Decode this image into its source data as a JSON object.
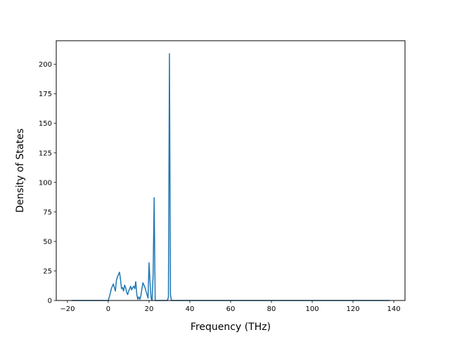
{
  "chart_data": {
    "type": "line",
    "title": "",
    "xlabel": "Frequency (THz)",
    "ylabel": "Density of States",
    "xlim": [
      -25.5,
      145.5
    ],
    "ylim": [
      0,
      220
    ],
    "xticks": [
      -20,
      0,
      20,
      40,
      60,
      80,
      100,
      120,
      140
    ],
    "yticks": [
      0,
      25,
      50,
      75,
      100,
      125,
      150,
      175,
      200
    ],
    "grid": false,
    "legend": "none",
    "line_color": "#1f77b4",
    "series": [
      {
        "x": [
          -18,
          -10,
          0,
          0.5,
          1,
          1.5,
          2,
          2.5,
          3,
          3.5,
          4,
          4.5,
          5,
          5.5,
          6,
          6.5,
          7,
          7.5,
          8,
          8.5,
          9,
          9.5,
          10,
          10.5,
          11,
          11.5,
          12,
          12.5,
          13,
          13.5,
          14,
          14.5,
          15,
          15.5,
          16,
          16.5,
          17,
          17.5,
          18,
          18.5,
          19,
          19.5,
          20,
          20.5,
          21,
          21.5,
          22,
          22.5,
          23,
          23.5,
          24,
          25,
          27,
          29,
          29.5,
          30,
          30.5,
          31,
          32,
          40,
          60,
          80,
          100,
          120,
          138
        ],
        "values": [
          0,
          0,
          0,
          3,
          6,
          10,
          12,
          14,
          11,
          8,
          17,
          20,
          22,
          24,
          18,
          10,
          11,
          8,
          13,
          11,
          7,
          5,
          8,
          10,
          12,
          9,
          11,
          12,
          10,
          16,
          5,
          1,
          3,
          1,
          4,
          10,
          15,
          13,
          11,
          8,
          5,
          2,
          32,
          15,
          2,
          0,
          22,
          87,
          0,
          0,
          0,
          0,
          0,
          0,
          3,
          209,
          5,
          0,
          0,
          0,
          0,
          0,
          0,
          0,
          0
        ]
      }
    ]
  }
}
